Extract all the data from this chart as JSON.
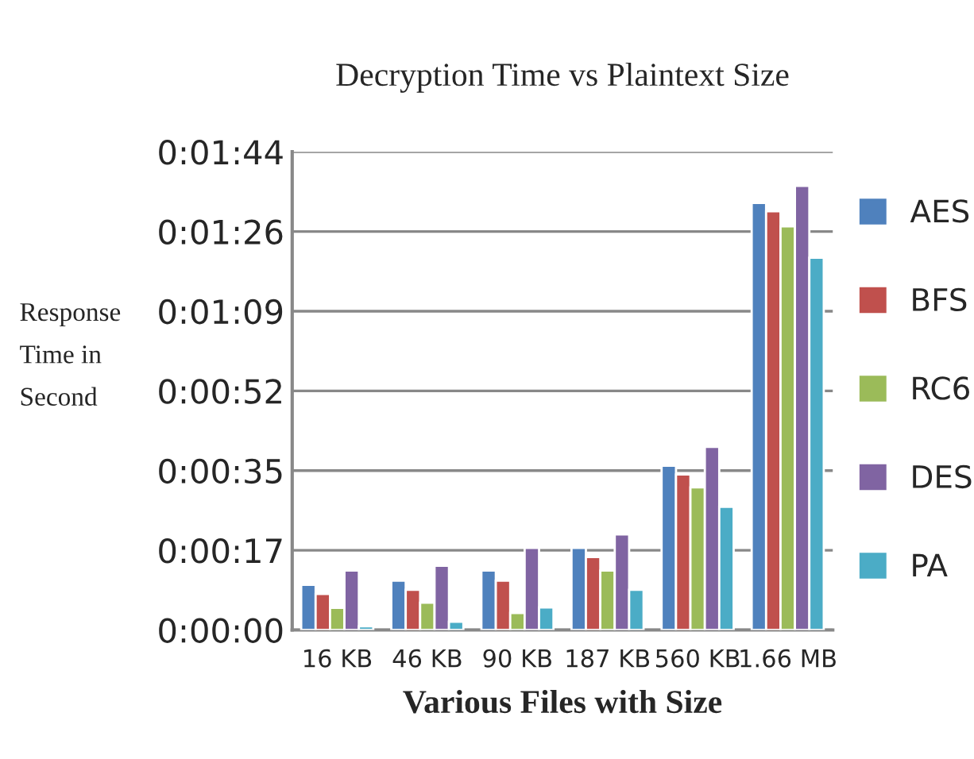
{
  "chart_data": {
    "type": "bar",
    "title": "Decryption Time vs Plaintext Size",
    "xlabel": "Various Files with Size",
    "ylabel": "Response\nTime in\nSecond",
    "categories": [
      "16 KB",
      "46 KB",
      "90 KB",
      "187 KB",
      "560 KB",
      "1.66 MB"
    ],
    "series": [
      {
        "name": "AES",
        "color": "#4f81bd",
        "values": [
          9.8,
          10.7,
          12.9,
          17.8,
          35.6,
          92.6
        ]
      },
      {
        "name": "BFS",
        "color": "#c0504d",
        "values": [
          7.8,
          8.7,
          10.7,
          15.8,
          33.7,
          90.8
        ]
      },
      {
        "name": "RC6",
        "color": "#9bbb59",
        "values": [
          4.8,
          5.9,
          3.7,
          12.9,
          30.9,
          87.5
        ]
      },
      {
        "name": "DES",
        "color": "#8064a2",
        "values": [
          12.9,
          13.9,
          17.8,
          20.7,
          39.7,
          96.3
        ]
      },
      {
        "name": "PA",
        "color": "#4bacc6",
        "values": [
          0.8,
          1.8,
          4.9,
          8.7,
          26.7,
          80.7
        ]
      }
    ],
    "ylim": [
      0,
      103.68
    ],
    "yticks": [
      {
        "value": 0,
        "label": "0:00:00"
      },
      {
        "value": 17.28,
        "label": "0:00:17"
      },
      {
        "value": 34.56,
        "label": "0:00:35"
      },
      {
        "value": 51.84,
        "label": "0:00:52"
      },
      {
        "value": 69.12,
        "label": "0:01:09"
      },
      {
        "value": 86.4,
        "label": "0:01:26"
      },
      {
        "value": 103.68,
        "label": "0:01:44"
      }
    ],
    "grid": "y",
    "legend": "right"
  }
}
